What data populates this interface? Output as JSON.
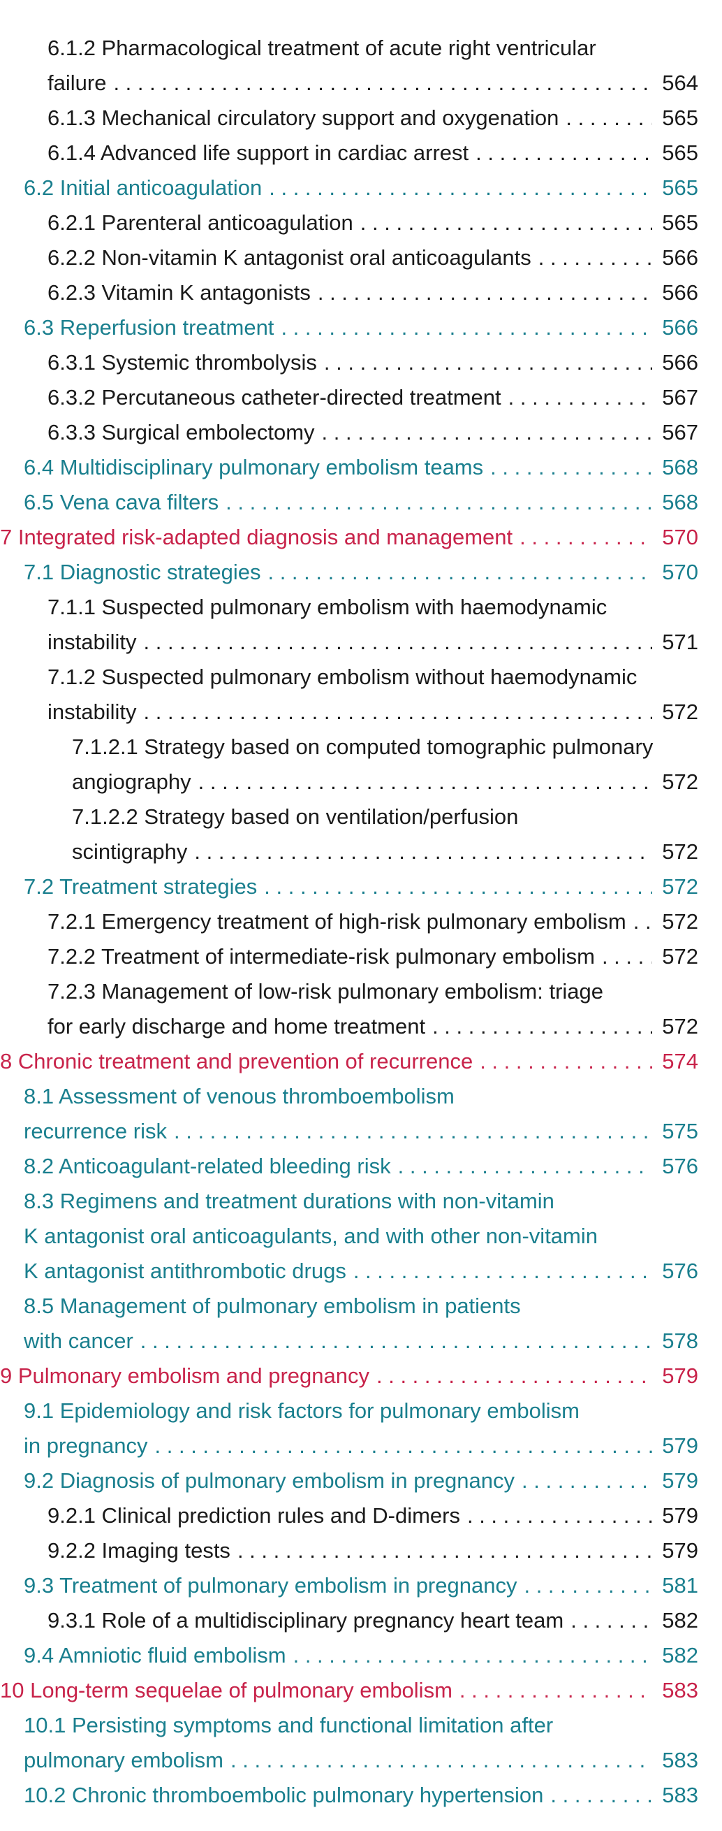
{
  "colors": {
    "chapter": "#c8234a",
    "section": "#1a7f8e",
    "subsection": "#1a1a1a"
  },
  "entries": [
    {
      "level": 2,
      "kind": "sub",
      "lines": [
        "6.1.2 Pharmacological treatment of acute right ventricular",
        "failure"
      ],
      "page": "564"
    },
    {
      "level": 2,
      "kind": "sub",
      "lines": [
        "6.1.3 Mechanical circulatory support and oxygenation"
      ],
      "page": "565"
    },
    {
      "level": 2,
      "kind": "sub",
      "lines": [
        "6.1.4 Advanced life support in cardiac arrest"
      ],
      "page": "565"
    },
    {
      "level": 1,
      "kind": "sec",
      "lines": [
        "6.2 Initial anticoagulation"
      ],
      "page": "565"
    },
    {
      "level": 2,
      "kind": "sub",
      "lines": [
        "6.2.1 Parenteral anticoagulation"
      ],
      "page": "565"
    },
    {
      "level": 2,
      "kind": "sub",
      "lines": [
        "6.2.2 Non-vitamin K antagonist oral anticoagulants"
      ],
      "page": "566"
    },
    {
      "level": 2,
      "kind": "sub",
      "lines": [
        "6.2.3 Vitamin K antagonists"
      ],
      "page": "566"
    },
    {
      "level": 1,
      "kind": "sec",
      "lines": [
        "6.3 Reperfusion treatment"
      ],
      "page": "566"
    },
    {
      "level": 2,
      "kind": "sub",
      "lines": [
        "6.3.1 Systemic thrombolysis"
      ],
      "page": "566"
    },
    {
      "level": 2,
      "kind": "sub",
      "lines": [
        "6.3.2 Percutaneous catheter-directed treatment"
      ],
      "page": "567"
    },
    {
      "level": 2,
      "kind": "sub",
      "lines": [
        "6.3.3 Surgical embolectomy"
      ],
      "page": "567"
    },
    {
      "level": 1,
      "kind": "sec",
      "lines": [
        "6.4 Multidisciplinary pulmonary embolism teams"
      ],
      "page": "568"
    },
    {
      "level": 1,
      "kind": "sec",
      "lines": [
        "6.5 Vena cava filters"
      ],
      "page": "568"
    },
    {
      "level": 0,
      "kind": "chap",
      "lines": [
        "7 Integrated risk-adapted diagnosis and management"
      ],
      "page": "570"
    },
    {
      "level": 1,
      "kind": "sec",
      "lines": [
        "7.1 Diagnostic strategies"
      ],
      "page": "570"
    },
    {
      "level": 2,
      "kind": "sub",
      "lines": [
        "7.1.1 Suspected pulmonary embolism with haemodynamic",
        "instability"
      ],
      "page": "571"
    },
    {
      "level": 2,
      "kind": "sub",
      "lines": [
        "7.1.2 Suspected pulmonary embolism without haemodynamic",
        "instability"
      ],
      "page": "572"
    },
    {
      "level": 3,
      "kind": "sub",
      "lines": [
        "7.1.2.1 Strategy based on computed tomographic pulmonary",
        "angiography"
      ],
      "page": "572"
    },
    {
      "level": 3,
      "kind": "sub",
      "lines": [
        "7.1.2.2  Strategy based on ventilation/perfusion",
        "scintigraphy"
      ],
      "page": "572"
    },
    {
      "level": 1,
      "kind": "sec",
      "lines": [
        "7.2 Treatment strategies"
      ],
      "page": "572"
    },
    {
      "level": 2,
      "kind": "sub",
      "lines": [
        "7.2.1 Emergency treatment of high-risk pulmonary embolism"
      ],
      "page": "572"
    },
    {
      "level": 2,
      "kind": "sub",
      "lines": [
        "7.2.2 Treatment of intermediate-risk pulmonary embolism"
      ],
      "page": "572"
    },
    {
      "level": 2,
      "kind": "sub",
      "lines": [
        "7.2.3 Management of low-risk pulmonary embolism: triage",
        "for early discharge and home treatment"
      ],
      "page": "572"
    },
    {
      "level": 0,
      "kind": "chap",
      "lines": [
        "8 Chronic treatment and prevention of recurrence"
      ],
      "page": "574"
    },
    {
      "level": 1,
      "kind": "sec",
      "lines": [
        "8.1 Assessment of venous thromboembolism",
        "recurrence risk"
      ],
      "page": "575"
    },
    {
      "level": 1,
      "kind": "sec",
      "lines": [
        "8.2 Anticoagulant-related bleeding risk"
      ],
      "page": "576"
    },
    {
      "level": 1,
      "kind": "sec",
      "lines": [
        "8.3 Regimens and treatment durations with non-vitamin",
        "K antagonist oral anticoagulants, and with other non-vitamin",
        "K antagonist antithrombotic drugs"
      ],
      "page": "576"
    },
    {
      "level": 1,
      "kind": "sec",
      "lines": [
        "8.5 Management of pulmonary embolism in patients",
        "with cancer"
      ],
      "page": "578"
    },
    {
      "level": 0,
      "kind": "chap",
      "lines": [
        "9 Pulmonary embolism and pregnancy"
      ],
      "page": "579"
    },
    {
      "level": 1,
      "kind": "sec",
      "lines": [
        "9.1 Epidemiology and risk factors for pulmonary embolism",
        "in pregnancy"
      ],
      "page": "579"
    },
    {
      "level": 1,
      "kind": "sec",
      "lines": [
        "9.2 Diagnosis of pulmonary embolism in pregnancy"
      ],
      "page": "579"
    },
    {
      "level": 2,
      "kind": "sub",
      "lines": [
        "9.2.1 Clinical prediction rules and D-dimers"
      ],
      "page": "579"
    },
    {
      "level": 2,
      "kind": "sub",
      "lines": [
        "9.2.2 Imaging tests"
      ],
      "page": "579"
    },
    {
      "level": 1,
      "kind": "sec",
      "lines": [
        "9.3 Treatment of pulmonary embolism in pregnancy"
      ],
      "page": "581"
    },
    {
      "level": 2,
      "kind": "sub",
      "lines": [
        "9.3.1 Role of a multidisciplinary pregnancy heart team"
      ],
      "page": "582"
    },
    {
      "level": 1,
      "kind": "sec",
      "lines": [
        "9.4 Amniotic fluid embolism"
      ],
      "page": "582"
    },
    {
      "level": 0,
      "kind": "chap",
      "lines": [
        "10 Long-term sequelae of pulmonary embolism"
      ],
      "page": "583"
    },
    {
      "level": 1,
      "kind": "sec",
      "lines": [
        "10.1 Persisting symptoms and functional limitation after",
        "pulmonary embolism"
      ],
      "page": "583"
    },
    {
      "level": 1,
      "kind": "sec",
      "lines": [
        "10.2 Chronic thromboembolic pulmonary hypertension"
      ],
      "page": "583"
    }
  ]
}
